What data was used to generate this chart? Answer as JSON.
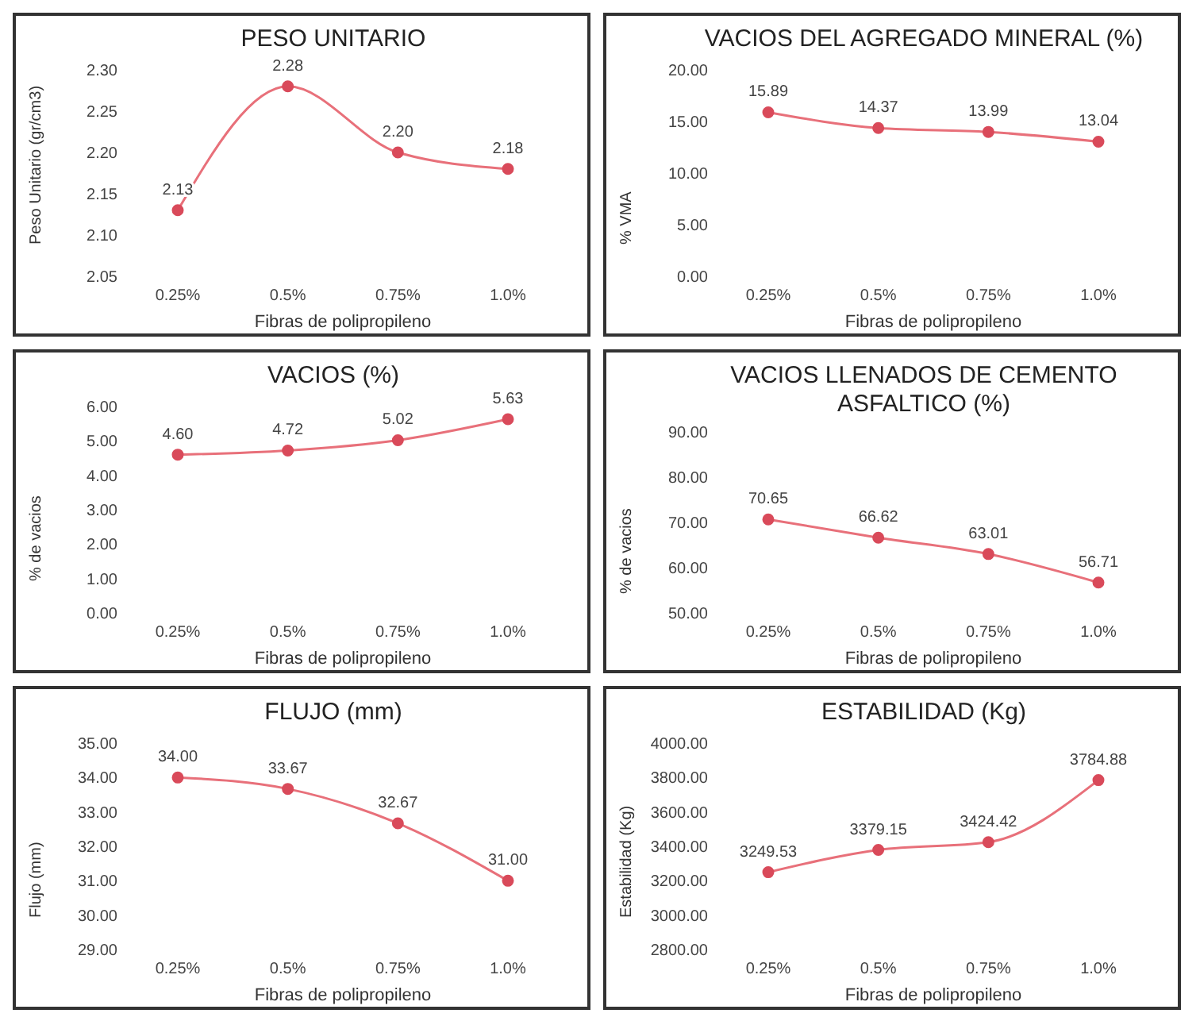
{
  "chart_data": [
    {
      "type": "line",
      "title": "PESO UNITARIO",
      "xlabel": "Fibras de polipropileno",
      "ylabel": "Peso Unitario (gr/cm3)",
      "categories": [
        "0.25%",
        "0.5%",
        "0.75%",
        "1.0%"
      ],
      "series": [
        {
          "color": "#e8707a",
          "values": [
            2.13,
            2.28,
            2.2,
            2.18
          ],
          "value_labels": [
            "2.13",
            "2.28",
            "2.20",
            "2.18"
          ]
        }
      ],
      "ylim": [
        2.05,
        2.3
      ],
      "yticks": [
        {
          "value": 2.05,
          "label": "2.05"
        },
        {
          "value": 2.1,
          "label": "2.10"
        },
        {
          "value": 2.15,
          "label": "2.15"
        },
        {
          "value": 2.2,
          "label": "2.20"
        },
        {
          "value": 2.25,
          "label": "2.25"
        },
        {
          "value": 2.3,
          "label": "2.30"
        }
      ],
      "marker": "circle",
      "grid": false,
      "legend": false
    },
    {
      "type": "line",
      "title": "VACIOS DEL AGREGADO MINERAL (%)",
      "xlabel": "Fibras de polipropileno",
      "ylabel": "% VMA",
      "categories": [
        "0.25%",
        "0.5%",
        "0.75%",
        "1.0%"
      ],
      "series": [
        {
          "color": "#e8707a",
          "values": [
            15.89,
            14.37,
            13.99,
            13.04
          ],
          "value_labels": [
            "15.89",
            "14.37",
            "13.99",
            "13.04"
          ]
        }
      ],
      "ylim": [
        0,
        20
      ],
      "yticks": [
        {
          "value": 0,
          "label": "0.00"
        },
        {
          "value": 5,
          "label": "5.00"
        },
        {
          "value": 10,
          "label": "10.00"
        },
        {
          "value": 15,
          "label": "15.00"
        },
        {
          "value": 20,
          "label": "20.00"
        }
      ],
      "marker": "circle",
      "grid": false,
      "legend": false
    },
    {
      "type": "line",
      "title": "VACIOS (%)",
      "xlabel": "Fibras de polipropileno",
      "ylabel": "% de vacios",
      "categories": [
        "0.25%",
        "0.5%",
        "0.75%",
        "1.0%"
      ],
      "series": [
        {
          "color": "#e8707a",
          "values": [
            4.6,
            4.72,
            5.02,
            5.63
          ],
          "value_labels": [
            "4.60",
            "4.72",
            "5.02",
            "5.63"
          ]
        }
      ],
      "ylim": [
        0,
        6
      ],
      "yticks": [
        {
          "value": 0,
          "label": "0.00"
        },
        {
          "value": 1,
          "label": "1.00"
        },
        {
          "value": 2,
          "label": "2.00"
        },
        {
          "value": 3,
          "label": "3.00"
        },
        {
          "value": 4,
          "label": "4.00"
        },
        {
          "value": 5,
          "label": "5.00"
        },
        {
          "value": 6,
          "label": "6.00"
        }
      ],
      "marker": "circle",
      "grid": false,
      "legend": false
    },
    {
      "type": "line",
      "title": "VACIOS LLENADOS DE CEMENTO ASFALTICO (%)",
      "xlabel": "Fibras de polipropileno",
      "ylabel": "% de vacios",
      "categories": [
        "0.25%",
        "0.5%",
        "0.75%",
        "1.0%"
      ],
      "series": [
        {
          "color": "#e8707a",
          "values": [
            70.65,
            66.62,
            63.01,
            56.71
          ],
          "value_labels": [
            "70.65",
            "66.62",
            "63.01",
            "56.71"
          ]
        }
      ],
      "ylim": [
        50,
        90
      ],
      "yticks": [
        {
          "value": 50,
          "label": "50.00"
        },
        {
          "value": 60,
          "label": "60.00"
        },
        {
          "value": 70,
          "label": "70.00"
        },
        {
          "value": 80,
          "label": "80.00"
        },
        {
          "value": 90,
          "label": "90.00"
        }
      ],
      "marker": "circle",
      "grid": false,
      "legend": false
    },
    {
      "type": "line",
      "title": "FLUJO (mm)",
      "xlabel": "Fibras de polipropileno",
      "ylabel": "Flujo (mm)",
      "categories": [
        "0.25%",
        "0.5%",
        "0.75%",
        "1.0%"
      ],
      "series": [
        {
          "color": "#e8707a",
          "values": [
            34,
            33.67,
            32.67,
            31
          ],
          "value_labels": [
            "34.00",
            "33.67",
            "32.67",
            "31.00"
          ]
        }
      ],
      "ylim": [
        29,
        35
      ],
      "yticks": [
        {
          "value": 29,
          "label": "29.00"
        },
        {
          "value": 30,
          "label": "30.00"
        },
        {
          "value": 31,
          "label": "31.00"
        },
        {
          "value": 32,
          "label": "32.00"
        },
        {
          "value": 33,
          "label": "33.00"
        },
        {
          "value": 34,
          "label": "34.00"
        },
        {
          "value": 35,
          "label": "35.00"
        }
      ],
      "marker": "circle",
      "grid": false,
      "legend": false
    },
    {
      "type": "line",
      "title": "ESTABILIDAD (Kg)",
      "xlabel": "Fibras de polipropileno",
      "ylabel": "Estabilidad (Kg)",
      "categories": [
        "0.25%",
        "0.5%",
        "0.75%",
        "1.0%"
      ],
      "series": [
        {
          "color": "#e8707a",
          "values": [
            3249.53,
            3379.15,
            3424.42,
            3784.88
          ],
          "value_labels": [
            "3249.53",
            "3379.15",
            "3424.42",
            "3784.88"
          ]
        }
      ],
      "ylim": [
        2800,
        4000
      ],
      "yticks": [
        {
          "value": 2800,
          "label": "2800.00"
        },
        {
          "value": 3000,
          "label": "3000.00"
        },
        {
          "value": 3200,
          "label": "3200.00"
        },
        {
          "value": 3400,
          "label": "3400.00"
        },
        {
          "value": 3600,
          "label": "3600.00"
        },
        {
          "value": 3800,
          "label": "3800.00"
        },
        {
          "value": 4000,
          "label": "4000.00"
        }
      ],
      "marker": "circle",
      "grid": false,
      "legend": false
    }
  ]
}
